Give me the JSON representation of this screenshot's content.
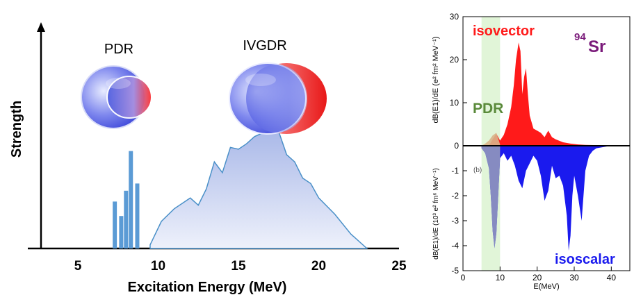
{
  "left_panel": {
    "ylabel": "Strength",
    "xlabel": "Excitation Energy (MeV)",
    "xticks": [
      "5",
      "10",
      "15",
      "20",
      "25"
    ],
    "pdr_label": "PDR",
    "ivgdr_label": "IVGDR"
  },
  "right_panel": {
    "isovector_label": "isovector",
    "isoscalar_label": "isoscalar",
    "pdr_label": "PDR",
    "nucleus_mass": "94",
    "nucleus_symbol": "Sr",
    "panel_b_label": "(b)",
    "xlabel": "E(MeV)",
    "upper_ylabel": "dB(E1)/dE (e² fm² MeV⁻¹)",
    "lower_ylabel": "dB(E1)/dE (10³ e² fm⁶ MeV⁻¹)",
    "upper_yticks": [
      "30",
      "20",
      "10",
      "0"
    ],
    "lower_yticks": [
      "-1",
      "-2",
      "-3",
      "-4",
      "-5"
    ],
    "xticks": [
      "0",
      "10",
      "20",
      "30",
      "40"
    ]
  },
  "colors": {
    "isovector": "#ff1a1a",
    "isoscalar": "#1a1aee",
    "pdr_green": "#5a8a3a",
    "nucleus": "#7a1a7a",
    "left_bars": "#5b9bd5",
    "ivgdr_fill": "#c9d3f0",
    "ivgdr_edge": "#4a90c8"
  },
  "chart_data": [
    {
      "type": "bar",
      "title": "",
      "xlabel": "Excitation Energy (MeV)",
      "ylabel": "Strength",
      "xlim": [
        3,
        25
      ],
      "series": [
        {
          "name": "PDR",
          "x": [
            7.3,
            7.7,
            8.0,
            8.3,
            8.7
          ],
          "values": [
            0.26,
            0.18,
            0.32,
            0.54,
            0.36
          ]
        }
      ]
    },
    {
      "type": "area",
      "xlabel": "Excitation Energy (MeV)",
      "ylabel": "Strength",
      "series": [
        {
          "name": "IVGDR",
          "x": [
            9.5,
            10.2,
            11,
            12,
            12.5,
            13,
            13.5,
            14,
            14.5,
            15,
            15.5,
            16,
            16.5,
            17,
            17.5,
            18,
            18.5,
            19,
            19.5,
            20,
            21,
            22,
            23
          ],
          "values": [
            0.02,
            0.15,
            0.22,
            0.28,
            0.24,
            0.33,
            0.48,
            0.42,
            0.56,
            0.55,
            0.58,
            0.62,
            0.64,
            0.66,
            0.65,
            0.52,
            0.48,
            0.39,
            0.36,
            0.28,
            0.19,
            0.08,
            0.0
          ]
        }
      ]
    },
    {
      "type": "area",
      "title": "",
      "xlabel": "E(MeV)",
      "ylabel": "dB(E1)/dE (e² fm² MeV⁻¹)",
      "xlim": [
        0,
        45
      ],
      "ylim": [
        0,
        30
      ],
      "series": [
        {
          "name": "isovector",
          "x": [
            7,
            8,
            9,
            10,
            11,
            12,
            13,
            13.7,
            14.3,
            15,
            15.5,
            16,
            16.5,
            17,
            17.5,
            18,
            19,
            20,
            21,
            22,
            23,
            24,
            25,
            27,
            29,
            31,
            33,
            45
          ],
          "values": [
            0,
            1.5,
            2.8,
            1.2,
            2.5,
            5,
            9,
            14,
            20,
            24,
            22,
            12,
            16,
            18,
            12,
            7,
            4,
            3.5,
            3,
            2,
            3.5,
            2,
            1.5,
            0.8,
            0.5,
            0.3,
            0.2,
            0
          ]
        },
        {
          "name": "PDR",
          "x": [
            5,
            6,
            7,
            8,
            9,
            10
          ],
          "values": [
            0,
            0.5,
            1.2,
            2.4,
            3.0,
            0.3
          ]
        }
      ]
    },
    {
      "type": "area",
      "xlabel": "E(MeV)",
      "ylabel": "dB(E1)/dE (10³ e² fm⁶ MeV⁻¹)",
      "xlim": [
        0,
        45
      ],
      "ylim": [
        -5,
        0
      ],
      "series": [
        {
          "name": "isoscalar",
          "x": [
            5,
            6,
            7,
            7.5,
            8,
            8.5,
            9,
            9.5,
            10,
            11,
            12,
            13,
            14,
            15,
            16,
            17,
            18,
            19,
            20,
            21,
            22,
            23,
            24,
            25,
            26,
            27,
            28,
            28.5,
            29,
            29.5,
            30,
            31,
            32,
            33,
            34,
            35,
            36,
            38,
            40,
            45
          ],
          "values": [
            -0.1,
            -0.3,
            -0.9,
            -2.0,
            -3.4,
            -4.1,
            -3.5,
            -2.0,
            -0.5,
            -0.3,
            -0.6,
            -0.4,
            -0.8,
            -1.4,
            -1.7,
            -1.0,
            -0.7,
            -0.4,
            -0.6,
            -1.2,
            -2.2,
            -1.8,
            -0.8,
            -1.3,
            -1.2,
            -1.6,
            -2.8,
            -4.2,
            -3.6,
            -2.0,
            -1.2,
            -2.0,
            -3.0,
            -1.0,
            -0.4,
            -0.2,
            -0.1,
            -0.05,
            0,
            0
          ]
        }
      ]
    }
  ]
}
